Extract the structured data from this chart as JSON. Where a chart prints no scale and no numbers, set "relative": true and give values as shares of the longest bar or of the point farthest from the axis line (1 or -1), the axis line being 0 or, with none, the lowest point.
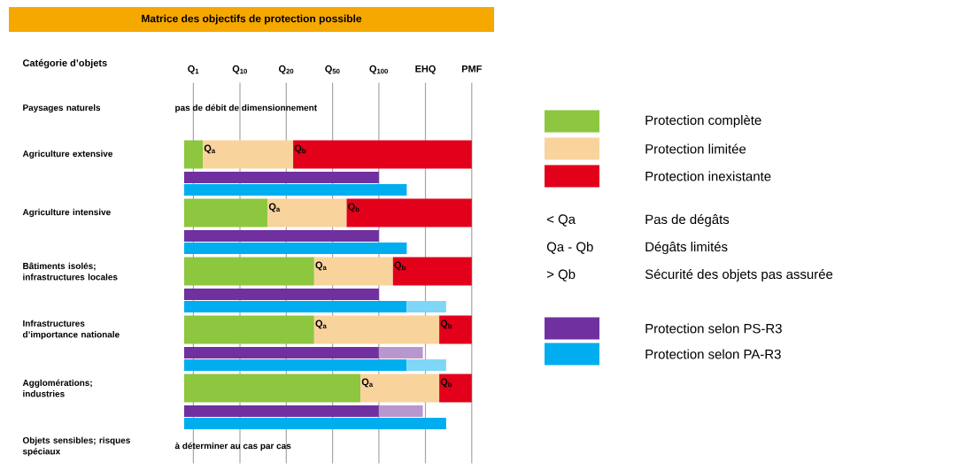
{
  "chart_data": {
    "type": "bar",
    "orientation": "horizontal",
    "stacked": true,
    "relative": true,
    "title": "Matrice des objectifs de protection possible",
    "ylabel": "Catégorie d’objets",
    "categories": [
      "Paysages naturels",
      null,
      "Agriculture extensive",
      null,
      null,
      "Agriculture intensive",
      null,
      null,
      "Bâtiments isolés; infrastructures locales",
      null,
      null,
      "Infrastructures d’importance nationale",
      null,
      null,
      "Agglomérations; industries",
      null,
      null,
      "Objets sensibles; risques spéciaux"
    ],
    "ref_lines": [
      {
        "axis": "x",
        "value": 0.032,
        "label": "Q$_{1}$"
      },
      {
        "axis": "x",
        "value": 0.194,
        "label": "Q$_{10}$"
      },
      {
        "axis": "x",
        "value": 0.355,
        "label": "Q$_{20}$"
      },
      {
        "axis": "x",
        "value": 0.516,
        "label": "Q$_{50}$"
      },
      {
        "axis": "x",
        "value": 0.677,
        "label": "Q$_{100}$"
      },
      {
        "axis": "x",
        "value": 0.839,
        "label": "EHQ"
      },
      {
        "axis": "x",
        "value": 1.0,
        "label": "PMF"
      }
    ],
    "series": [
      {
        "name": "Protection complète",
        "color": "#8dc63f",
        "values": [
          null,
          null,
          0.065,
          null,
          null,
          0.29,
          null,
          null,
          0.452,
          null,
          null,
          0.452,
          null,
          null,
          0.613,
          null,
          null,
          null
        ]
      },
      {
        "name": "Protection limitée",
        "color": "#f9d39c",
        "values": [
          null,
          null,
          0.314,
          null,
          null,
          0.275,
          null,
          null,
          0.274,
          null,
          null,
          0.435,
          null,
          null,
          0.274,
          null,
          null,
          null
        ]
      },
      {
        "name": "Protection inexistante",
        "color": "#e2001a",
        "values": [
          null,
          null,
          0.621,
          null,
          null,
          0.435,
          null,
          null,
          0.274,
          null,
          null,
          0.113,
          null,
          null,
          0.113,
          null,
          null,
          null
        ]
      },
      {
        "name": "Protection selon PS-R3",
        "color": "#7030a0",
        "values": [
          null,
          null,
          null,
          0.677,
          null,
          null,
          0.677,
          null,
          null,
          0.677,
          null,
          null,
          0.677,
          null,
          null,
          0.677,
          null,
          null
        ]
      },
      {
        "color": "#b897cf",
        "values": [
          null,
          null,
          null,
          null,
          null,
          null,
          null,
          null,
          null,
          null,
          null,
          null,
          0.153,
          null,
          null,
          0.153,
          null,
          null
        ]
      },
      {
        "name": "Protection selon PA-R3",
        "color": "#00aeef",
        "values": [
          null,
          null,
          null,
          null,
          0.774,
          null,
          null,
          0.774,
          null,
          null,
          0.774,
          null,
          null,
          0.774,
          null,
          null,
          0.911,
          null
        ]
      },
      {
        "color": "#80d6f7",
        "values": [
          null,
          null,
          null,
          null,
          null,
          null,
          null,
          null,
          null,
          null,
          0.137,
          null,
          null,
          0.137,
          null,
          null,
          null,
          null
        ]
      }
    ],
    "annotations": [
      "pas de débit de dimensionnement",
      {
        "text": "Q$_{a}$",
        "x": 0.065,
        "y": "Agriculture extensive"
      },
      {
        "text": "Q$_{b}$",
        "x": 0.379,
        "y": "Agriculture extensive"
      },
      {
        "text": "Q$_{a}$",
        "x": 0.29,
        "y": "Agriculture intensive"
      },
      {
        "text": "Q$_{b}$",
        "x": 0.565,
        "y": "Agriculture intensive"
      },
      {
        "text": "Q$_{a}$",
        "x": 0.452,
        "y": "Bâtiments isolés; infrastructures locales"
      },
      {
        "text": "Q$_{b}$",
        "x": 0.726,
        "y": "Bâtiments isolés; infrastructures locales"
      },
      {
        "text": "Q$_{a}$",
        "x": 0.452,
        "y": "Infrastructures d’importance nationale"
      },
      {
        "text": "Q$_{b}$",
        "x": 0.887,
        "y": "Infrastructures d’importance nationale"
      },
      {
        "text": "Q$_{a}$",
        "x": 0.613,
        "y": "Agglomérations; industries"
      },
      {
        "text": "Q$_{b}$",
        "x": 0.887,
        "y": "Agglomérations; industries"
      },
      "à déterminer au cas par cas",
      "< Qa",
      "Pas de dégâts",
      "Qa - Qb",
      "Dégâts limités",
      "> Qb",
      "Sécurité des objets pas assurée"
    ],
    "legend": "right"
  }
}
